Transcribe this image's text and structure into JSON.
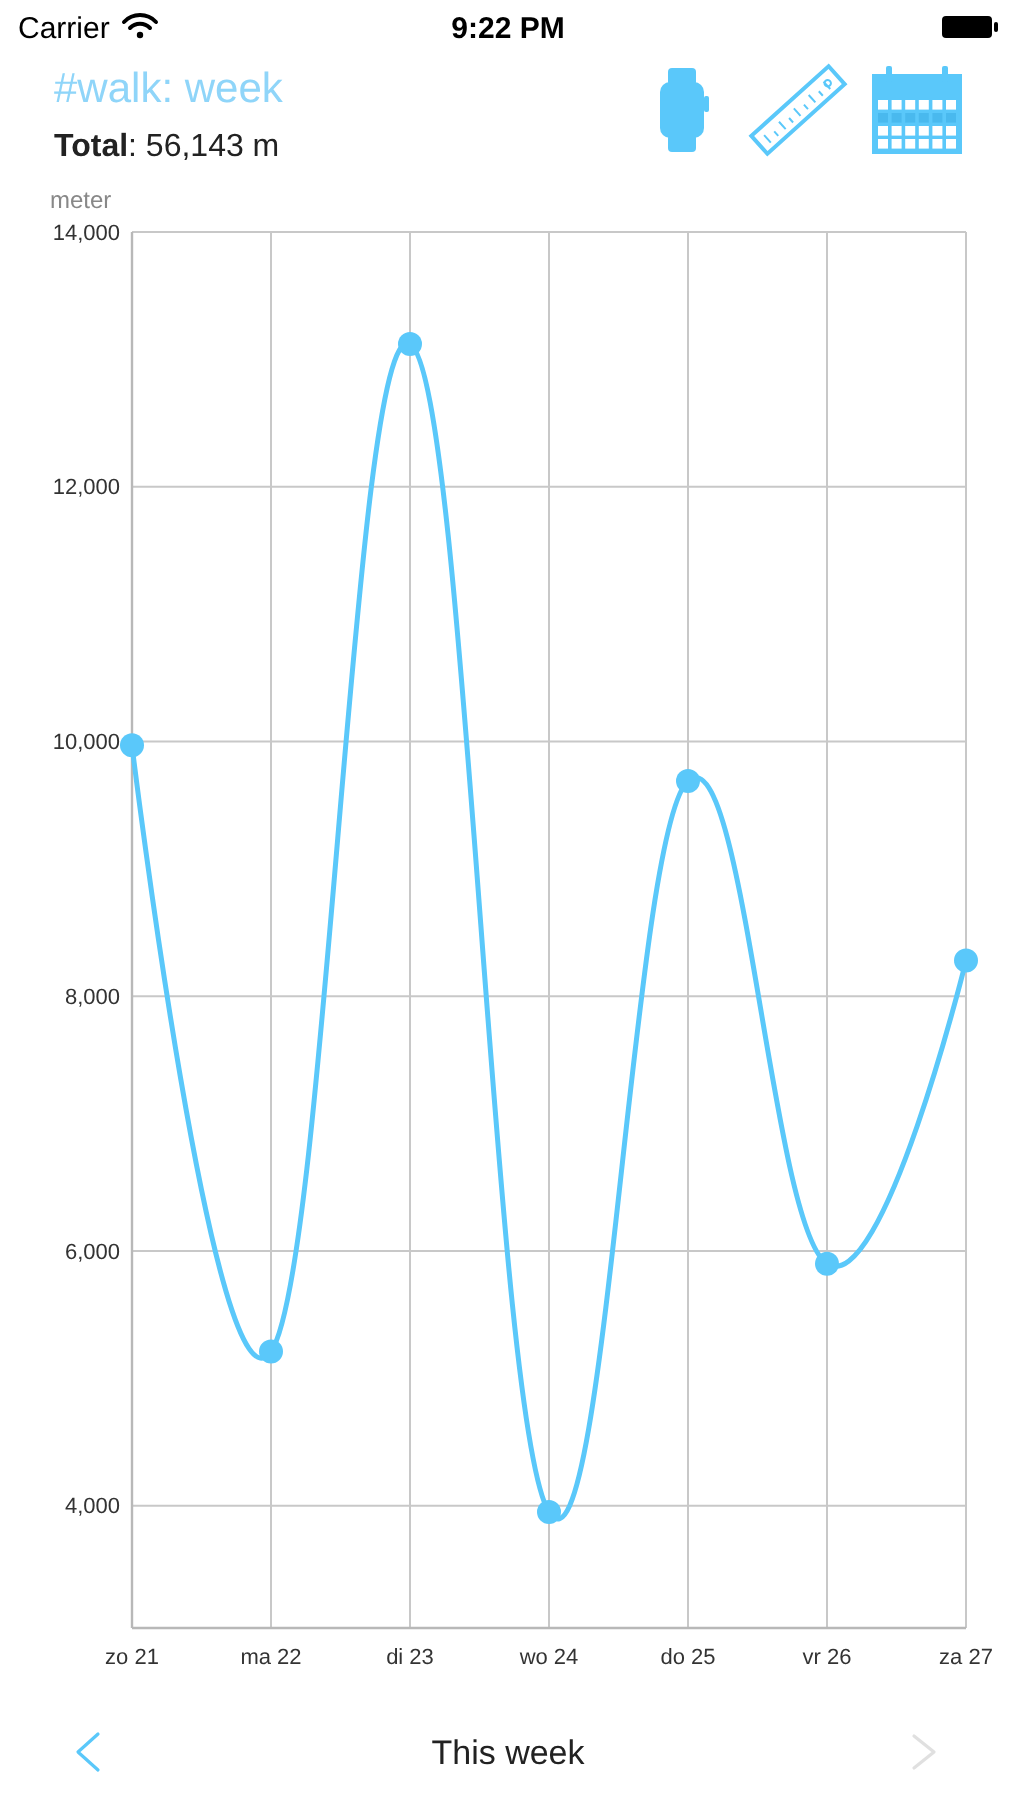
{
  "chart_data": {
    "type": "line",
    "title": "#walk: week",
    "subtitle": "Total: 56,143 m",
    "ylabel": "meter",
    "annotations": [
      "Carrier",
      "9:22 PM",
      "This week"
    ],
    "categories": [
      "zo 21",
      "ma 22",
      "di 23",
      "wo 24",
      "do 25",
      "vr 26",
      "za 27"
    ],
    "values": [
      9970,
      5210,
      13120,
      3950,
      9690,
      5900,
      8280
    ],
    "color": "#5ac8fa",
    "ylim": [
      3040,
      14000
    ],
    "yticks": [
      {
        "value": 4000,
        "label": "4,000"
      },
      {
        "value": 6000,
        "label": "6,000"
      },
      {
        "value": 8000,
        "label": "8,000"
      },
      {
        "value": 10000,
        "label": "10,000"
      },
      {
        "value": 12000,
        "label": "12,000"
      },
      {
        "value": 14000,
        "label": "14,000"
      }
    ],
    "grid": true,
    "marker": "circle"
  }
}
